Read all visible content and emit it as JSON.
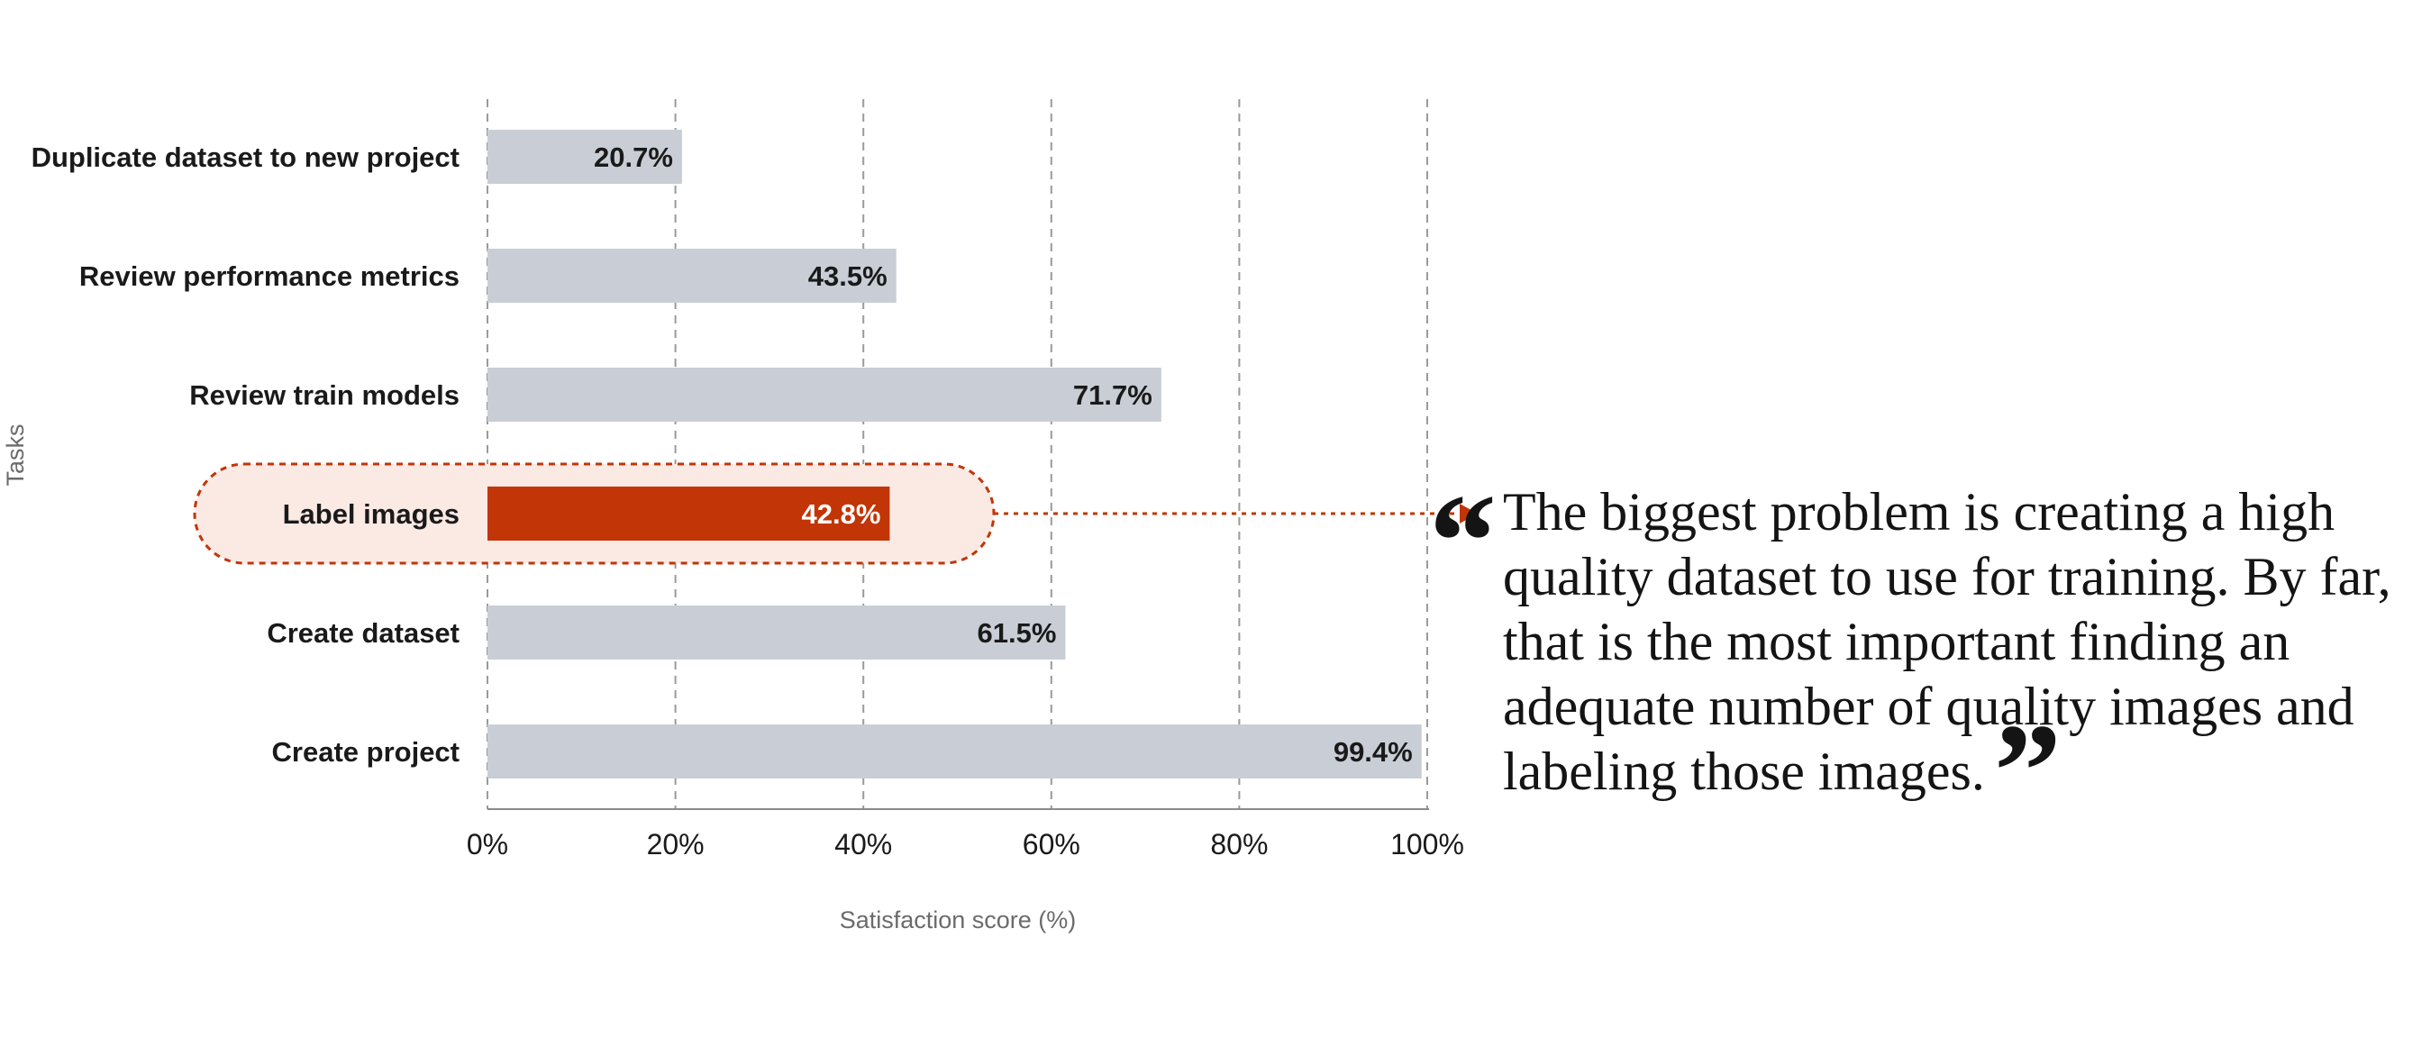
{
  "chart_data": {
    "type": "bar",
    "orientation": "horizontal",
    "categories": [
      "Duplicate dataset to new project",
      "Review performance metrics",
      "Review train models",
      "Label images",
      "Create dataset",
      "Create project"
    ],
    "values": [
      20.7,
      43.5,
      71.7,
      42.8,
      61.5,
      99.4
    ],
    "value_labels": [
      "20.7%",
      "43.5%",
      "71.7%",
      "42.8%",
      "61.5%",
      "99.4%"
    ],
    "highlighted_category": "Label images",
    "xlabel": "Satisfaction score (%)",
    "ylabel": "Tasks",
    "xlim": [
      0,
      100
    ],
    "x_ticks": [
      0,
      20,
      40,
      60,
      80,
      100
    ],
    "x_tick_labels": [
      "0%",
      "20%",
      "40%",
      "60%",
      "80%",
      "100%"
    ],
    "grid": "vertical-dashed",
    "colors": {
      "bar": "#c9ced6",
      "highlight": "#c23506",
      "highlight_bg": "#fbe9e4",
      "grid": "#9a9a9a"
    }
  },
  "quote": {
    "open_mark": "“",
    "text": "The biggest problem is creating a high quality dataset to use for training. By far, that is the most important finding an adequate number of quality images and labeling those images.",
    "close_mark": "”"
  }
}
